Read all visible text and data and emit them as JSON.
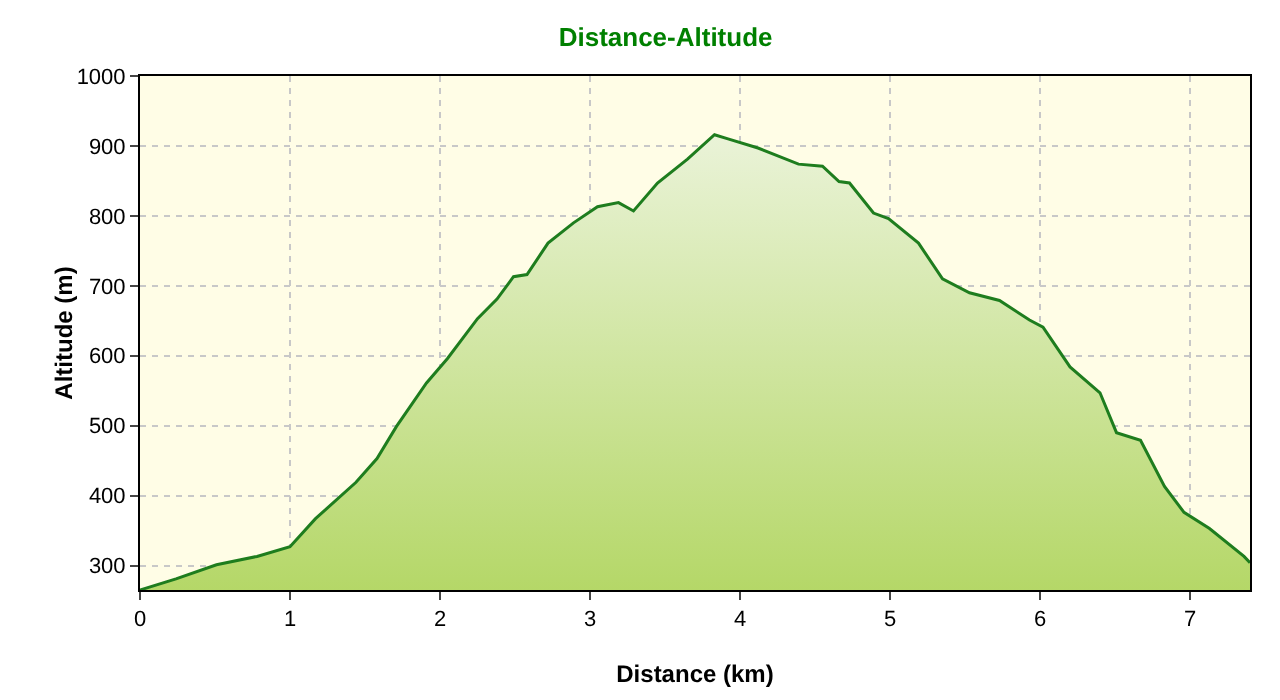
{
  "chart_data": {
    "type": "area",
    "title": "Distance-Altitude",
    "xlabel": "Distance (km)",
    "ylabel": "Altitude (m)",
    "x": [
      0,
      0.24,
      0.51,
      0.78,
      1.0,
      1.17,
      1.44,
      1.58,
      1.71,
      1.91,
      2.05,
      2.25,
      2.38,
      2.49,
      2.58,
      2.72,
      2.89,
      3.05,
      3.19,
      3.29,
      3.45,
      3.65,
      3.83,
      3.92,
      4.12,
      4.39,
      4.55,
      4.66,
      4.73,
      4.89,
      4.99,
      5.19,
      5.35,
      5.53,
      5.73,
      5.93,
      6.02,
      6.2,
      6.4,
      6.51,
      6.67,
      6.83,
      6.96,
      7.13,
      7.36,
      7.4
    ],
    "series": [
      {
        "color": "#1e7d1e",
        "values": [
          265,
          281,
          301,
          313,
          327,
          367,
          419,
          453,
          499,
          561,
          596,
          653,
          681,
          713,
          716,
          761,
          790,
          813,
          819,
          807,
          847,
          881,
          916,
          910,
          897,
          874,
          871,
          849,
          847,
          804,
          796,
          761,
          710,
          690,
          679,
          651,
          641,
          584,
          547,
          490,
          479,
          413,
          376,
          353,
          313,
          304
        ]
      }
    ],
    "xlim": [
      0,
      7.4
    ],
    "xticks": [
      0,
      1,
      2,
      3,
      4,
      5,
      6,
      7
    ],
    "ylim": [
      265,
      1000
    ],
    "yticks": [
      300,
      400,
      500,
      600,
      700,
      800,
      900,
      1000
    ],
    "grid": true,
    "legend": false
  }
}
